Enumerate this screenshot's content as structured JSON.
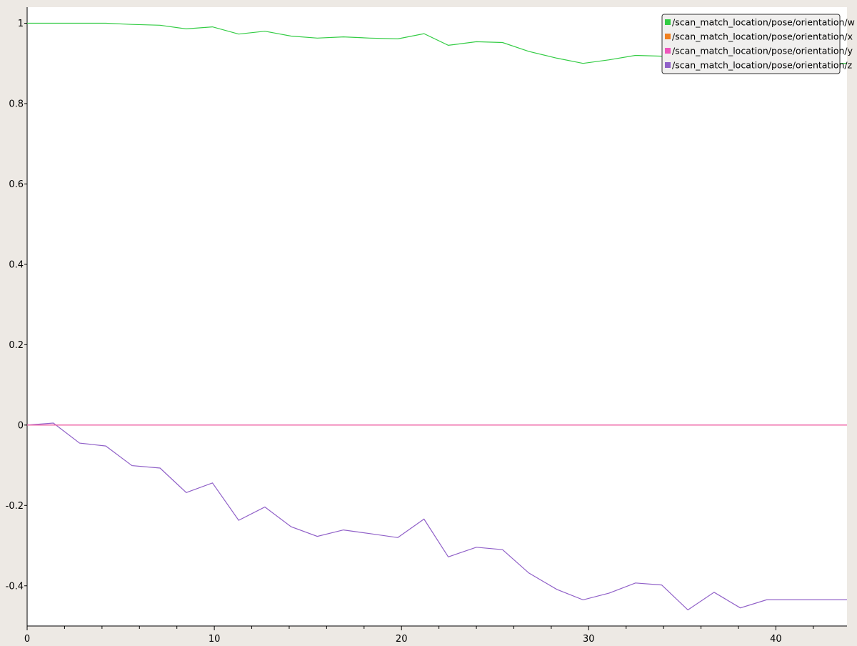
{
  "colors": {
    "window_bg": "#ede9e4",
    "plot_bg": "#ffffff",
    "series_w": "#33cc44",
    "series_x": "#f08020",
    "series_y": "#ee55bb",
    "series_z": "#9060c8",
    "legend_bg": "#f0efee"
  },
  "chart_data": {
    "type": "line",
    "title": "",
    "xlabel": "",
    "ylabel": "",
    "xlim": [
      0,
      43.8
    ],
    "ylim": [
      -0.5,
      1.04
    ],
    "grid": false,
    "legend_position": "top-right",
    "x_ticks": [
      0,
      10,
      20,
      30,
      40
    ],
    "y_ticks": [
      -0.4,
      -0.2,
      0,
      0.2,
      0.4,
      0.6,
      0.8,
      1
    ],
    "x_tick_labels": [
      "0",
      "10",
      "20",
      "30",
      "40"
    ],
    "y_tick_labels": [
      "-0.4",
      "-0.2",
      "0",
      "0.2",
      "0.4",
      "0.6",
      "0.8",
      "1"
    ],
    "series": [
      {
        "name": "/scan_match_location/pose/orientation/w",
        "color": "#33cc44",
        "x": [
          0,
          1.4,
          2.8,
          4.2,
          5.6,
          7.1,
          8.5,
          9.9,
          11.3,
          12.7,
          14.1,
          15.5,
          16.9,
          18.3,
          19.8,
          21.2,
          22.5,
          24.0,
          25.4,
          26.8,
          28.3,
          29.7,
          31.1,
          32.5,
          33.9,
          35.3,
          36.7,
          38.1,
          39.5,
          40.9,
          43.8
        ],
        "y": [
          1.0,
          1.0,
          1.0,
          1.0,
          0.997,
          0.995,
          0.986,
          0.991,
          0.973,
          0.98,
          0.968,
          0.963,
          0.966,
          0.963,
          0.961,
          0.974,
          0.945,
          0.954,
          0.952,
          0.93,
          0.913,
          0.9,
          0.909,
          0.92,
          0.918,
          0.891,
          0.912,
          0.9,
          0.9,
          0.9,
          0.9
        ]
      },
      {
        "name": "/scan_match_location/pose/orientation/x",
        "color": "#f08020",
        "x": [
          0,
          43.8
        ],
        "y": [
          0,
          0
        ]
      },
      {
        "name": "/scan_match_location/pose/orientation/y",
        "color": "#ee55bb",
        "x": [
          0,
          43.8
        ],
        "y": [
          0,
          0
        ]
      },
      {
        "name": "/scan_match_location/pose/orientation/z",
        "color": "#9060c8",
        "x": [
          0,
          1.4,
          2.8,
          4.2,
          5.6,
          7.1,
          8.5,
          9.9,
          11.3,
          12.7,
          14.1,
          15.5,
          16.9,
          18.3,
          19.8,
          21.2,
          22.5,
          24.0,
          25.4,
          26.8,
          28.3,
          29.7,
          31.1,
          32.5,
          33.9,
          35.3,
          36.7,
          38.1,
          39.5,
          40.9,
          43.8
        ],
        "y": [
          0,
          0.005,
          -0.045,
          -0.052,
          -0.101,
          -0.107,
          -0.168,
          -0.144,
          -0.237,
          -0.204,
          -0.253,
          -0.277,
          -0.261,
          -0.27,
          -0.28,
          -0.234,
          -0.328,
          -0.304,
          -0.31,
          -0.368,
          -0.409,
          -0.435,
          -0.418,
          -0.393,
          -0.398,
          -0.46,
          -0.416,
          -0.455,
          -0.435,
          -0.435,
          -0.435
        ]
      }
    ]
  }
}
